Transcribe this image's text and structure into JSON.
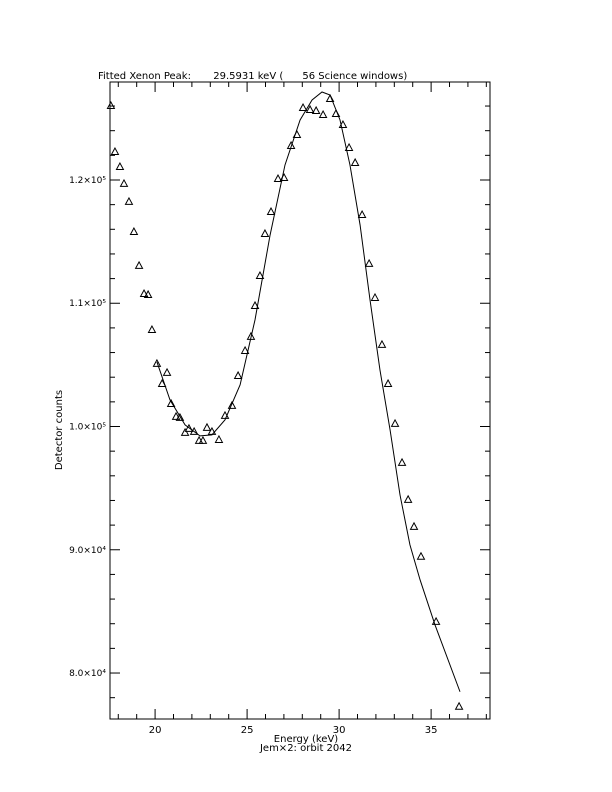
{
  "chart_data": {
    "type": "scatter",
    "title": "Fitted Xenon Peak:       29.5931 keV (      56 Science windows)",
    "x_label": "Energy (keV)",
    "subtitle": "Jem×2: orbit 2042",
    "y_label": "Detector counts",
    "xlim": [
      17.55,
      38.2
    ],
    "ylim": [
      76270,
      127950
    ],
    "xticks": [
      20,
      25,
      30,
      35
    ],
    "xminorticks": [
      18,
      19,
      21,
      22,
      23,
      24,
      26,
      27,
      28,
      29,
      31,
      32,
      33,
      34,
      36,
      37,
      38
    ],
    "yticks": [
      {
        "value": 80000,
        "label": "8.0×10⁴"
      },
      {
        "value": 90000,
        "label": "9.0×10⁴"
      },
      {
        "value": 100000,
        "label": "1.0×10⁵"
      },
      {
        "value": 110000,
        "label": "1.1×10⁵"
      },
      {
        "value": 120000,
        "label": "1.2×10⁵"
      }
    ],
    "yminorticks": [
      78000,
      82000,
      84000,
      86000,
      88000,
      92000,
      94000,
      96000,
      98000,
      102000,
      104000,
      106000,
      108000,
      112000,
      114000,
      116000,
      118000,
      122000,
      124000,
      126000
    ],
    "series": [
      {
        "type": "scatter",
        "marker": "triangle",
        "color": "#000000",
        "x": [
          17.6,
          17.82,
          18.09,
          18.31,
          18.58,
          18.85,
          19.13,
          19.4,
          19.62,
          19.83,
          20.1,
          20.38,
          20.65,
          20.87,
          21.14,
          21.35,
          21.63,
          21.84,
          22.12,
          22.39,
          22.6,
          22.82,
          23.09,
          23.47,
          23.8,
          24.18,
          24.51,
          24.89,
          25.21,
          25.43,
          25.7,
          25.97,
          26.3,
          26.68,
          27.01,
          27.39,
          27.71,
          28.04,
          28.42,
          28.75,
          29.13,
          29.51,
          29.83,
          30.21,
          30.54,
          30.87,
          31.25,
          31.63,
          31.95,
          32.33,
          32.66,
          33.04,
          33.42,
          33.75,
          34.07,
          34.45,
          35.27,
          36.52
        ],
        "values": [
          126000,
          122270,
          121050,
          119680,
          118220,
          115780,
          113030,
          110750,
          110670,
          107830,
          105080,
          103450,
          104350,
          101830,
          100780,
          100700,
          99480,
          99810,
          99560,
          98830,
          98830,
          99890,
          99560,
          98910,
          100860,
          101670,
          104100,
          106130,
          107270,
          109780,
          112210,
          115620,
          117400,
          120080,
          120160,
          122760,
          123650,
          125840,
          125680,
          125600,
          125270,
          126570,
          125350,
          124460,
          122600,
          121380,
          117160,
          113190,
          110430,
          106620,
          103450,
          100210,
          97050,
          94050,
          91860,
          89430,
          84150,
          77260
        ]
      },
      {
        "type": "line",
        "color": "#000000",
        "x": [
          20.1,
          20.81,
          21.63,
          22.44,
          23.09,
          23.8,
          24.62,
          25.43,
          26.25,
          27.06,
          27.88,
          28.53,
          29.07,
          29.51,
          30.05,
          30.59,
          31.14,
          31.68,
          32.22,
          32.77,
          33.31,
          33.85,
          34.4,
          35.21,
          36.57
        ],
        "values": [
          105240,
          102160,
          100130,
          99240,
          99320,
          100540,
          103380,
          108650,
          115540,
          121220,
          124870,
          126490,
          127140,
          126890,
          124870,
          121220,
          116350,
          110270,
          104590,
          99720,
          94450,
          90400,
          87560,
          83910,
          78480
        ]
      }
    ]
  }
}
